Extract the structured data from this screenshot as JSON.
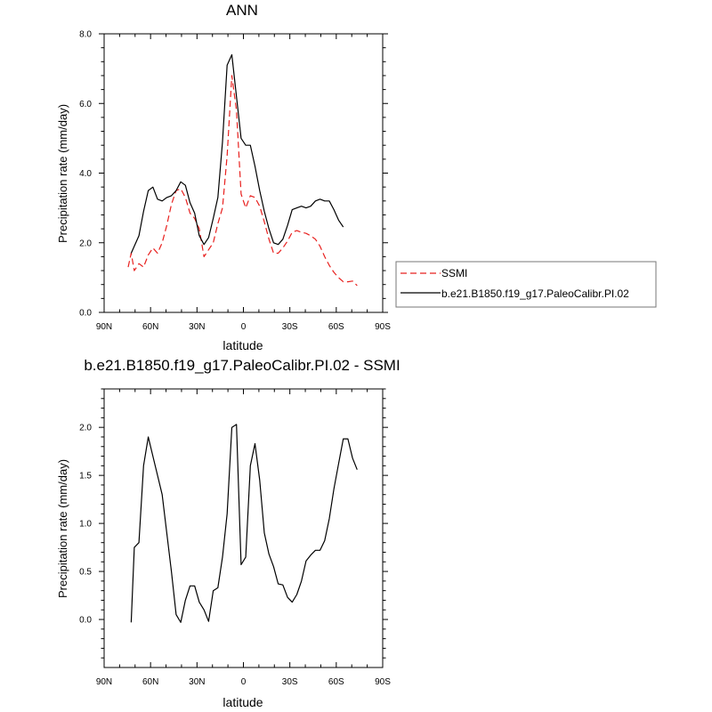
{
  "chart_data": [
    {
      "type": "line",
      "title": "ANN",
      "xlabel": "latitude",
      "ylabel": "Precipitation rate (mm/day)",
      "x_axis": "latitude, north to south",
      "xlim": [
        90,
        -90
      ],
      "ylim": [
        0,
        8
      ],
      "xticks": [
        {
          "value": 90,
          "label": "90N"
        },
        {
          "value": 60,
          "label": "60N"
        },
        {
          "value": 30,
          "label": "30N"
        },
        {
          "value": 0,
          "label": "0"
        },
        {
          "value": -30,
          "label": "30S"
        },
        {
          "value": -60,
          "label": "60S"
        },
        {
          "value": -90,
          "label": "90S"
        }
      ],
      "yticks": [
        {
          "value": 0,
          "label": "0.0"
        },
        {
          "value": 2,
          "label": "2.0"
        },
        {
          "value": 4,
          "label": "4.0"
        },
        {
          "value": 6,
          "label": "6.0"
        },
        {
          "value": 8,
          "label": "8.0"
        }
      ],
      "grid": false,
      "legend": "right, outside plot",
      "series": [
        {
          "name": "SSMI",
          "color": "#e8201e",
          "dash": "dashed",
          "points": [
            [
              74.5,
              1.3
            ],
            [
              72.5,
              1.7
            ],
            [
              70.5,
              1.2
            ],
            [
              67.5,
              1.4
            ],
            [
              64.5,
              1.3
            ],
            [
              61.5,
              1.65
            ],
            [
              58.5,
              1.85
            ],
            [
              55.5,
              1.7
            ],
            [
              52.5,
              2.0
            ],
            [
              49.5,
              2.5
            ],
            [
              46.5,
              3.1
            ],
            [
              43.5,
              3.5
            ],
            [
              40.5,
              3.55
            ],
            [
              37.5,
              3.3
            ],
            [
              34.5,
              2.85
            ],
            [
              31.5,
              2.7
            ],
            [
              28.5,
              2.4
            ],
            [
              25.5,
              1.6
            ],
            [
              22.5,
              1.8
            ],
            [
              19.5,
              2.0
            ],
            [
              16.5,
              2.55
            ],
            [
              13.5,
              3.0
            ],
            [
              10.5,
              4.5
            ],
            [
              7.5,
              6.8
            ],
            [
              4.5,
              5.8
            ],
            [
              1.5,
              3.4
            ],
            [
              -1.5,
              3.0
            ],
            [
              -4.5,
              3.35
            ],
            [
              -7.5,
              3.3
            ],
            [
              -10.5,
              3.05
            ],
            [
              -13.5,
              2.6
            ],
            [
              -16.5,
              2.1
            ],
            [
              -19.5,
              1.7
            ],
            [
              -22.5,
              1.7
            ],
            [
              -25.5,
              1.85
            ],
            [
              -28.5,
              2.05
            ],
            [
              -31.5,
              2.3
            ],
            [
              -34.5,
              2.35
            ],
            [
              -37.5,
              2.3
            ],
            [
              -40.5,
              2.27
            ],
            [
              -43.5,
              2.2
            ],
            [
              -46.5,
              2.1
            ],
            [
              -49.5,
              1.9
            ],
            [
              -52.5,
              1.6
            ],
            [
              -55.5,
              1.35
            ],
            [
              -58.5,
              1.15
            ],
            [
              -61.5,
              1.0
            ],
            [
              -64.5,
              0.88
            ],
            [
              -67.5,
              0.88
            ],
            [
              -70.5,
              0.9
            ],
            [
              -73.5,
              0.77
            ]
          ]
        },
        {
          "name": "b.e21.B1850.f19_g17.PaleoCalibr.PI.02",
          "color": "#000000",
          "dash": "solid",
          "points": [
            [
              72.5,
              1.7
            ],
            [
              67.5,
              2.2
            ],
            [
              64.5,
              2.9
            ],
            [
              61.5,
              3.5
            ],
            [
              58.5,
              3.6
            ],
            [
              55.5,
              3.25
            ],
            [
              52.5,
              3.2
            ],
            [
              49.5,
              3.3
            ],
            [
              46.5,
              3.35
            ],
            [
              43.5,
              3.5
            ],
            [
              40.5,
              3.75
            ],
            [
              37.5,
              3.65
            ],
            [
              34.5,
              3.15
            ],
            [
              31.5,
              2.85
            ],
            [
              28.5,
              2.2
            ],
            [
              25.5,
              1.95
            ],
            [
              22.5,
              2.15
            ],
            [
              19.5,
              2.7
            ],
            [
              16.5,
              3.3
            ],
            [
              13.5,
              4.9
            ],
            [
              10.5,
              7.1
            ],
            [
              7.5,
              7.4
            ],
            [
              4.5,
              6.2
            ],
            [
              1.5,
              5.0
            ],
            [
              -1.5,
              4.8
            ],
            [
              -4.5,
              4.8
            ],
            [
              -7.5,
              4.2
            ],
            [
              -10.5,
              3.5
            ],
            [
              -13.5,
              2.9
            ],
            [
              -16.5,
              2.4
            ],
            [
              -19.5,
              2.0
            ],
            [
              -22.5,
              1.95
            ],
            [
              -25.5,
              2.1
            ],
            [
              -28.5,
              2.5
            ],
            [
              -31.5,
              2.95
            ],
            [
              -34.5,
              3.0
            ],
            [
              -37.5,
              3.05
            ],
            [
              -40.5,
              3.0
            ],
            [
              -43.5,
              3.05
            ],
            [
              -46.5,
              3.2
            ],
            [
              -49.5,
              3.25
            ],
            [
              -52.5,
              3.2
            ],
            [
              -55.5,
              3.2
            ],
            [
              -58.5,
              2.95
            ],
            [
              -61.5,
              2.65
            ],
            [
              -64.5,
              2.45
            ]
          ]
        }
      ]
    },
    {
      "type": "line",
      "title": "b.e21.B1850.f19_g17.PaleoCalibr.PI.02 - SSMI",
      "xlabel": "latitude",
      "ylabel": "Precipitation rate (mm/day)",
      "x_axis": "latitude, north to south",
      "xlim": [
        90,
        -90
      ],
      "ylim": [
        -0.5,
        2.4
      ],
      "xticks": [
        {
          "value": 90,
          "label": "90N"
        },
        {
          "value": 60,
          "label": "60N"
        },
        {
          "value": 30,
          "label": "30N"
        },
        {
          "value": 0,
          "label": "0"
        },
        {
          "value": -30,
          "label": "30S"
        },
        {
          "value": -60,
          "label": "60S"
        },
        {
          "value": -90,
          "label": "90S"
        }
      ],
      "yticks": [
        {
          "value": 0,
          "label": "0.0"
        },
        {
          "value": 0.5,
          "label": "0.5"
        },
        {
          "value": 1.0,
          "label": "1.0"
        },
        {
          "value": 1.5,
          "label": "1.5"
        },
        {
          "value": 2.0,
          "label": "2.0"
        }
      ],
      "grid": false,
      "series": [
        {
          "name": "",
          "color": "#000000",
          "dash": "solid",
          "points": [
            [
              72.5,
              -0.03
            ],
            [
              70.5,
              0.75
            ],
            [
              67.5,
              0.8
            ],
            [
              64.5,
              1.6
            ],
            [
              61.5,
              1.9
            ],
            [
              58.5,
              1.7
            ],
            [
              55.5,
              1.5
            ],
            [
              52.5,
              1.3
            ],
            [
              49.5,
              0.9
            ],
            [
              46.5,
              0.5
            ],
            [
              43.5,
              0.05
            ],
            [
              40.5,
              -0.03
            ],
            [
              37.5,
              0.2
            ],
            [
              34.5,
              0.35
            ],
            [
              31.5,
              0.35
            ],
            [
              28.5,
              0.18
            ],
            [
              25.5,
              0.1
            ],
            [
              22.5,
              -0.02
            ],
            [
              19.5,
              0.3
            ],
            [
              16.5,
              0.33
            ],
            [
              13.5,
              0.65
            ],
            [
              10.5,
              1.1
            ],
            [
              7.5,
              2.0
            ],
            [
              4.5,
              2.03
            ],
            [
              1.5,
              0.57
            ],
            [
              -1.5,
              0.65
            ],
            [
              -4.5,
              1.6
            ],
            [
              -7.5,
              1.83
            ],
            [
              -10.5,
              1.45
            ],
            [
              -13.5,
              0.9
            ],
            [
              -16.5,
              0.68
            ],
            [
              -19.5,
              0.55
            ],
            [
              -22.5,
              0.37
            ],
            [
              -25.5,
              0.36
            ],
            [
              -28.5,
              0.23
            ],
            [
              -31.5,
              0.18
            ],
            [
              -34.5,
              0.26
            ],
            [
              -37.5,
              0.4
            ],
            [
              -40.5,
              0.61
            ],
            [
              -43.5,
              0.67
            ],
            [
              -46.5,
              0.72
            ],
            [
              -49.5,
              0.72
            ],
            [
              -52.5,
              0.82
            ],
            [
              -55.5,
              1.05
            ],
            [
              -58.5,
              1.36
            ],
            [
              -61.5,
              1.62
            ],
            [
              -64.5,
              1.88
            ],
            [
              -67.5,
              1.88
            ],
            [
              -70.5,
              1.68
            ],
            [
              -73.5,
              1.56
            ]
          ]
        }
      ]
    }
  ]
}
